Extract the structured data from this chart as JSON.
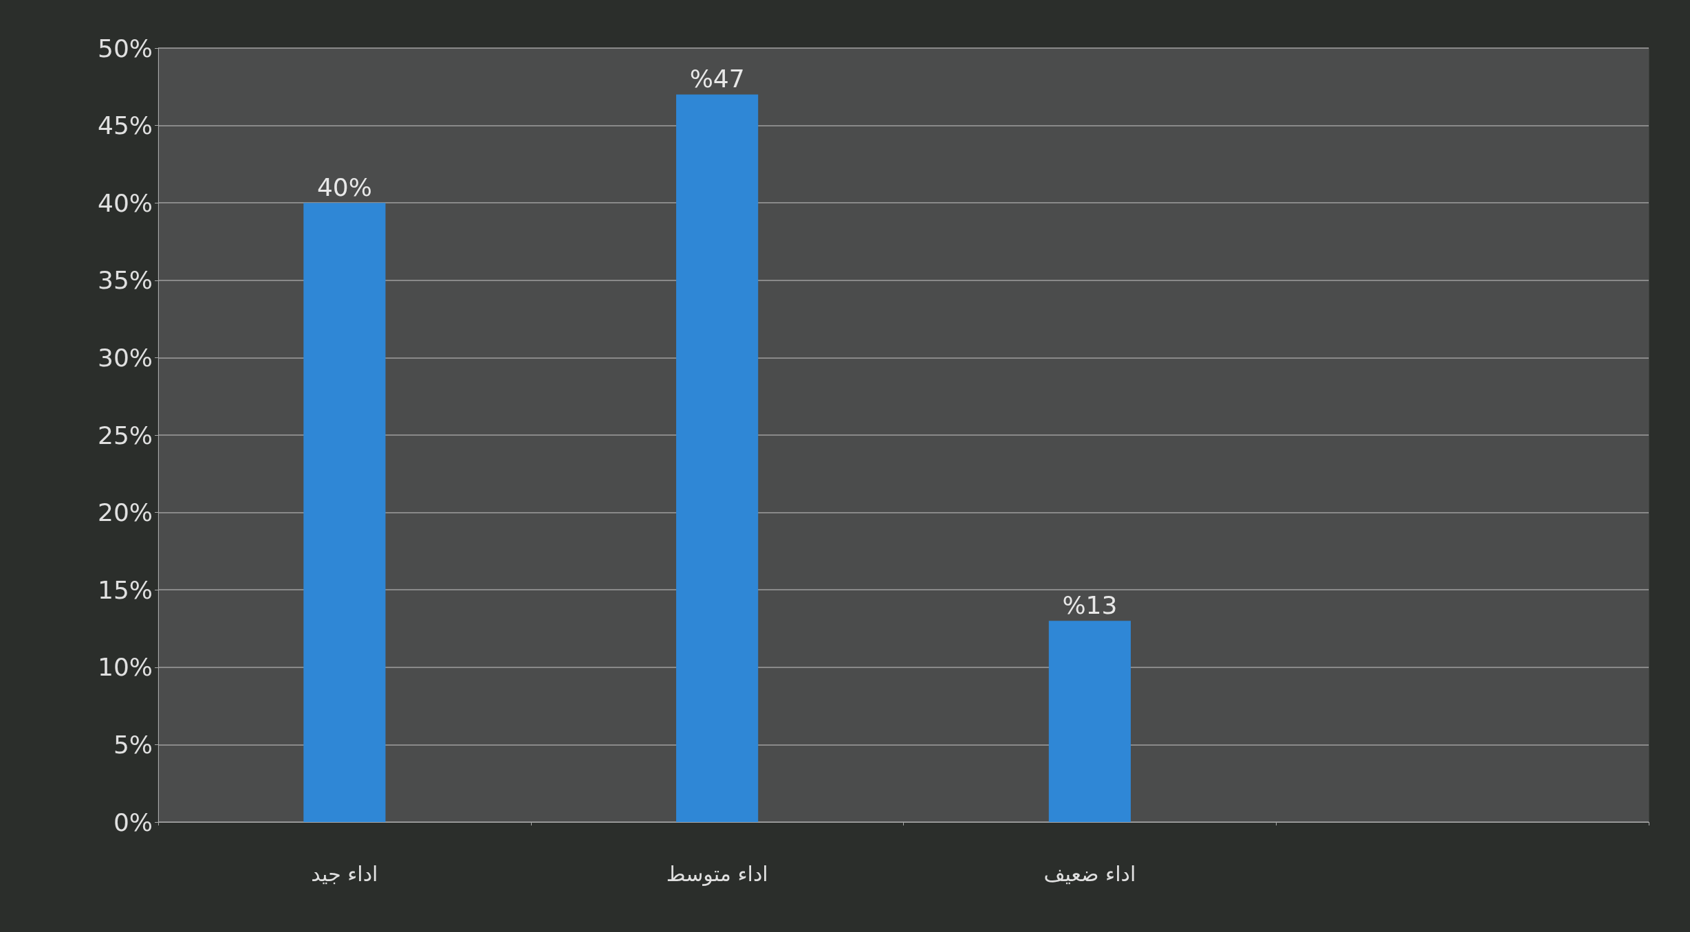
{
  "chart_data": {
    "type": "bar",
    "categories": [
      "اداء جيد",
      "اداء متوسط",
      "اداء ضعيف",
      null
    ],
    "values": [
      40,
      47,
      13,
      null
    ],
    "color": "#2f87d6",
    "value_labels": [
      "40%",
      "%47",
      "%13",
      null
    ],
    "ylim": [
      0,
      50
    ],
    "yticks": [
      {
        "value": 0,
        "label": "0%"
      },
      {
        "value": 5,
        "label": "5%"
      },
      {
        "value": 10,
        "label": "10%"
      },
      {
        "value": 15,
        "label": "15%"
      },
      {
        "value": 20,
        "label": "20%"
      },
      {
        "value": 25,
        "label": "25%"
      },
      {
        "value": 30,
        "label": "30%"
      },
      {
        "value": 35,
        "label": "35%"
      },
      {
        "value": 40,
        "label": "40%"
      },
      {
        "value": 45,
        "label": "45%"
      },
      {
        "value": 50,
        "label": "50%"
      }
    ],
    "grid": "y"
  }
}
